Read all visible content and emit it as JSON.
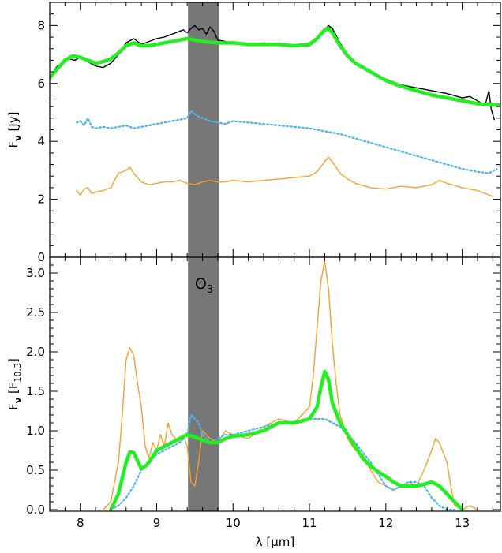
{
  "chart_data": [
    {
      "type": "line",
      "panel": "top",
      "xlim": [
        7.6,
        13.5
      ],
      "ylim": [
        0,
        8.8
      ],
      "ylabel_main": "F",
      "ylabel_sub": "ν",
      "ylabel_unit": " [Jy]",
      "x_ticks": [
        8,
        9,
        10,
        11,
        12,
        13
      ],
      "y_ticks": [
        0,
        2,
        4,
        6,
        8
      ],
      "y_tick_labels": [
        "0",
        "2",
        "4",
        "6",
        "8"
      ],
      "shaded_band": {
        "x0": 9.41,
        "x1": 9.82,
        "color": "#777777"
      },
      "grid": false,
      "series": [
        {
          "color": "#000000",
          "width": 1.4,
          "dash": "",
          "x": [
            7.62,
            7.7,
            7.78,
            7.85,
            7.93,
            8.0,
            8.1,
            8.2,
            8.3,
            8.4,
            8.5,
            8.6,
            8.7,
            8.8,
            8.9,
            9.0,
            9.1,
            9.2,
            9.3,
            9.35,
            9.4,
            9.45,
            9.5,
            9.55,
            9.6,
            9.65,
            9.7,
            9.75,
            9.8,
            9.9,
            10.0,
            10.2,
            10.4,
            10.6,
            10.8,
            11.0,
            11.1,
            11.2,
            11.25,
            11.3,
            11.4,
            11.5,
            11.6,
            11.8,
            12.0,
            12.2,
            12.4,
            12.6,
            12.8,
            13.0,
            13.1,
            13.2,
            13.3,
            13.35,
            13.38,
            13.42
          ],
          "y": [
            6.3,
            6.6,
            6.7,
            6.85,
            6.8,
            6.9,
            6.75,
            6.6,
            6.55,
            6.7,
            7.0,
            7.4,
            7.55,
            7.35,
            7.45,
            7.55,
            7.6,
            7.7,
            7.8,
            7.85,
            7.75,
            7.9,
            8.0,
            7.85,
            7.9,
            7.7,
            7.95,
            7.8,
            7.5,
            7.45,
            7.4,
            7.35,
            7.4,
            7.35,
            7.3,
            7.3,
            7.5,
            7.85,
            8.0,
            7.9,
            7.4,
            7.0,
            6.7,
            6.4,
            6.15,
            5.95,
            5.85,
            5.75,
            5.65,
            5.5,
            5.55,
            5.4,
            5.25,
            5.75,
            5.1,
            4.75
          ]
        },
        {
          "color": "#22ee22",
          "width": 4.5,
          "dash": "",
          "x": [
            7.6,
            7.7,
            7.8,
            7.9,
            8.0,
            8.1,
            8.2,
            8.3,
            8.4,
            8.5,
            8.6,
            8.7,
            8.8,
            8.9,
            9.0,
            9.2,
            9.4,
            9.6,
            9.8,
            10.0,
            10.2,
            10.4,
            10.6,
            10.8,
            11.0,
            11.1,
            11.2,
            11.25,
            11.3,
            11.4,
            11.5,
            11.6,
            11.8,
            12.0,
            12.2,
            12.4,
            12.6,
            12.8,
            13.0,
            13.2,
            13.5
          ],
          "y": [
            6.2,
            6.5,
            6.8,
            6.95,
            6.9,
            6.8,
            6.7,
            6.75,
            6.85,
            7.05,
            7.3,
            7.4,
            7.3,
            7.3,
            7.35,
            7.45,
            7.55,
            7.45,
            7.4,
            7.4,
            7.35,
            7.35,
            7.35,
            7.3,
            7.35,
            7.55,
            7.85,
            7.9,
            7.75,
            7.3,
            6.95,
            6.7,
            6.4,
            6.1,
            5.9,
            5.75,
            5.6,
            5.5,
            5.4,
            5.3,
            5.25
          ]
        },
        {
          "color": "#4ab3f0",
          "width": 2.2,
          "dash": "2,3",
          "x": [
            7.95,
            8.0,
            8.05,
            8.1,
            8.15,
            8.2,
            8.3,
            8.4,
            8.5,
            8.6,
            8.7,
            8.8,
            8.9,
            9.0,
            9.1,
            9.2,
            9.3,
            9.4,
            9.45,
            9.5,
            9.55,
            9.6,
            9.7,
            9.8,
            9.9,
            10.0,
            10.2,
            10.4,
            10.6,
            10.8,
            11.0,
            11.2,
            11.4,
            11.6,
            11.8,
            12.0,
            12.2,
            12.4,
            12.6,
            12.8,
            13.0,
            13.2,
            13.35,
            13.45
          ],
          "y": [
            4.65,
            4.7,
            4.55,
            4.8,
            4.5,
            4.45,
            4.5,
            4.45,
            4.5,
            4.55,
            4.45,
            4.5,
            4.55,
            4.6,
            4.65,
            4.7,
            4.75,
            4.8,
            5.05,
            4.95,
            4.85,
            4.8,
            4.7,
            4.65,
            4.6,
            4.7,
            4.65,
            4.6,
            4.55,
            4.5,
            4.45,
            4.35,
            4.25,
            4.1,
            3.95,
            3.8,
            3.65,
            3.5,
            3.35,
            3.2,
            3.05,
            2.95,
            2.9,
            3.05
          ]
        },
        {
          "color": "#f5a030",
          "width": 1.4,
          "dash": "",
          "x": [
            7.95,
            8.0,
            8.05,
            8.1,
            8.15,
            8.2,
            8.3,
            8.4,
            8.5,
            8.6,
            8.65,
            8.7,
            8.8,
            8.9,
            9.0,
            9.1,
            9.2,
            9.3,
            9.4,
            9.5,
            9.6,
            9.7,
            9.8,
            9.9,
            10.0,
            10.2,
            10.4,
            10.6,
            10.8,
            11.0,
            11.1,
            11.2,
            11.25,
            11.3,
            11.4,
            11.5,
            11.6,
            11.8,
            12.0,
            12.2,
            12.4,
            12.6,
            12.7,
            12.8,
            13.0,
            13.2,
            13.4
          ],
          "y": [
            2.3,
            2.15,
            2.35,
            2.4,
            2.2,
            2.25,
            2.3,
            2.4,
            2.9,
            3.0,
            3.1,
            2.9,
            2.6,
            2.5,
            2.55,
            2.6,
            2.6,
            2.65,
            2.55,
            2.5,
            2.6,
            2.65,
            2.6,
            2.6,
            2.65,
            2.6,
            2.65,
            2.7,
            2.75,
            2.8,
            2.95,
            3.3,
            3.45,
            3.3,
            2.9,
            2.7,
            2.55,
            2.4,
            2.35,
            2.45,
            2.4,
            2.5,
            2.65,
            2.55,
            2.4,
            2.3,
            2.1
          ]
        }
      ]
    },
    {
      "type": "line",
      "panel": "bottom",
      "xlim": [
        7.6,
        13.5
      ],
      "ylim": [
        -0.02,
        3.2
      ],
      "xlabel": "λ [μm]",
      "ylabel_main": "F",
      "ylabel_sub": "ν",
      "ylabel_unit": " [F",
      "ylabel_unit_sub": "10.3",
      "ylabel_close": "]",
      "x_ticks": [
        8,
        9,
        10,
        11,
        12,
        13
      ],
      "x_tick_labels": [
        "8",
        "9",
        "10",
        "11",
        "12",
        "13"
      ],
      "y_ticks": [
        0.0,
        0.5,
        1.0,
        1.5,
        2.0,
        2.5,
        3.0
      ],
      "y_tick_labels": [
        "0.0",
        "0.5",
        "1.0",
        "1.5",
        "2.0",
        "2.5",
        "3.0"
      ],
      "shaded_band": {
        "x0": 9.41,
        "x1": 9.82,
        "color": "#777777"
      },
      "annotation": {
        "text": "O",
        "sub": "3",
        "x": 9.62,
        "y": 2.8
      },
      "grid": false,
      "series": [
        {
          "color": "#f5a030",
          "width": 1.4,
          "dash": "",
          "x": [
            8.3,
            8.4,
            8.5,
            8.55,
            8.6,
            8.65,
            8.7,
            8.75,
            8.8,
            8.85,
            8.9,
            8.95,
            9.0,
            9.05,
            9.1,
            9.15,
            9.2,
            9.3,
            9.35,
            9.4,
            9.45,
            9.5,
            9.55,
            9.6,
            9.7,
            9.8,
            9.9,
            10.0,
            10.2,
            10.4,
            10.6,
            10.8,
            11.0,
            11.05,
            11.1,
            11.15,
            11.2,
            11.25,
            11.3,
            11.35,
            11.4,
            11.5,
            11.6,
            11.7,
            11.8,
            11.9,
            12.0,
            12.1,
            12.2,
            12.3,
            12.4,
            12.5,
            12.6,
            12.65,
            12.7,
            12.8,
            12.85,
            12.9,
            13.0,
            13.1,
            13.2
          ],
          "y": [
            0.0,
            0.1,
            0.6,
            1.2,
            1.9,
            2.05,
            1.95,
            1.6,
            1.3,
            0.8,
            0.65,
            0.85,
            0.75,
            0.95,
            0.8,
            1.1,
            0.95,
            0.85,
            0.95,
            0.8,
            0.35,
            0.3,
            0.6,
            1.0,
            0.9,
            0.85,
            1.0,
            0.95,
            0.9,
            1.05,
            1.15,
            1.1,
            1.3,
            1.7,
            2.3,
            2.9,
            3.15,
            2.8,
            2.1,
            1.6,
            1.2,
            0.9,
            0.75,
            0.7,
            0.5,
            0.35,
            0.3,
            0.25,
            0.3,
            0.35,
            0.3,
            0.5,
            0.75,
            0.9,
            0.85,
            0.6,
            0.3,
            0.05,
            0.0,
            0.05,
            0.0
          ]
        },
        {
          "color": "#4ab3f0",
          "width": 2.2,
          "dash": "2,3",
          "x": [
            8.4,
            8.5,
            8.6,
            8.7,
            8.8,
            8.9,
            9.0,
            9.1,
            9.2,
            9.3,
            9.4,
            9.45,
            9.5,
            9.55,
            9.6,
            9.7,
            9.8,
            9.9,
            10.0,
            10.2,
            10.4,
            10.6,
            10.8,
            11.0,
            11.2,
            11.4,
            11.6,
            11.8,
            11.9,
            12.0,
            12.1,
            12.2,
            12.3,
            12.4,
            12.5,
            12.6,
            12.7,
            12.8,
            12.9
          ],
          "y": [
            0.0,
            0.05,
            0.15,
            0.3,
            0.5,
            0.6,
            0.7,
            0.75,
            0.8,
            0.85,
            0.95,
            1.2,
            1.15,
            1.1,
            0.95,
            0.85,
            0.9,
            0.95,
            0.95,
            1.0,
            1.05,
            1.1,
            1.1,
            1.15,
            1.15,
            1.05,
            0.85,
            0.6,
            0.45,
            0.3,
            0.25,
            0.3,
            0.35,
            0.35,
            0.3,
            0.15,
            0.05,
            0.0,
            0.0
          ]
        },
        {
          "color": "#22ee22",
          "width": 4.5,
          "dash": "",
          "x": [
            8.4,
            8.5,
            8.55,
            8.6,
            8.65,
            8.7,
            8.75,
            8.8,
            8.85,
            8.9,
            9.0,
            9.1,
            9.2,
            9.3,
            9.4,
            9.5,
            9.6,
            9.7,
            9.8,
            9.9,
            10.0,
            10.2,
            10.4,
            10.6,
            10.8,
            11.0,
            11.1,
            11.15,
            11.2,
            11.25,
            11.3,
            11.4,
            11.5,
            11.6,
            11.7,
            11.8,
            11.9,
            12.0,
            12.1,
            12.2,
            12.3,
            12.4,
            12.5,
            12.6,
            12.7,
            12.8,
            12.9,
            13.0
          ],
          "y": [
            0.0,
            0.2,
            0.4,
            0.6,
            0.73,
            0.72,
            0.62,
            0.52,
            0.55,
            0.6,
            0.75,
            0.8,
            0.85,
            0.9,
            0.95,
            0.92,
            0.88,
            0.85,
            0.85,
            0.9,
            0.93,
            0.95,
            1.0,
            1.1,
            1.1,
            1.15,
            1.3,
            1.55,
            1.75,
            1.65,
            1.35,
            1.1,
            0.95,
            0.8,
            0.65,
            0.55,
            0.48,
            0.42,
            0.35,
            0.3,
            0.3,
            0.3,
            0.32,
            0.35,
            0.3,
            0.2,
            0.1,
            0.0
          ]
        }
      ]
    }
  ]
}
